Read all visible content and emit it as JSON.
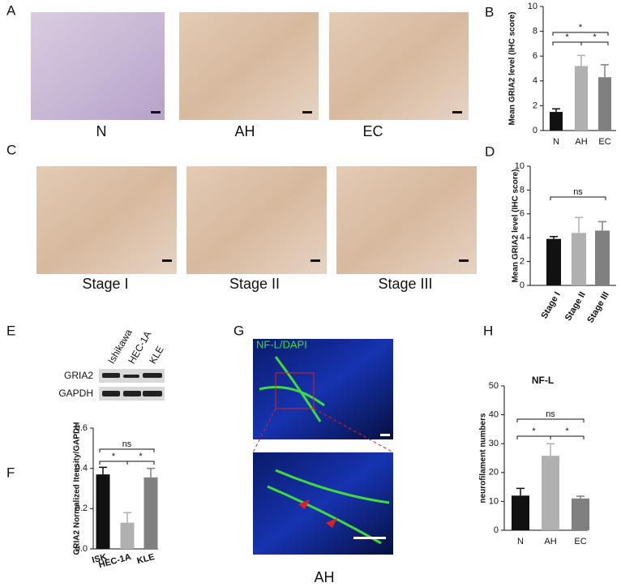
{
  "panel_labels": [
    "A",
    "B",
    "C",
    "D",
    "E",
    "F",
    "G",
    "H"
  ],
  "image_captions": [
    "N",
    "AH",
    "EC",
    "Stage I",
    "Stage II",
    "Stage III",
    "AH"
  ],
  "blot": {
    "lanes": [
      "Ishikawa",
      "HEC-1A",
      "KLE"
    ],
    "rows": [
      "GRIA2",
      "GAPDH"
    ]
  },
  "fluorescence_label": "NF-L/DAPI",
  "chart_data": [
    {
      "type": "bar",
      "ylabel": "Mean GRIA2 level (IHC score)",
      "categories": [
        "N",
        "AH",
        "EC"
      ],
      "values": [
        1.5,
        5.2,
        4.3
      ],
      "errors": [
        0.25,
        0.85,
        1.0
      ],
      "colors": [
        "#111111",
        "#b0b0b0",
        "#808080"
      ],
      "ylim": [
        0,
        10
      ],
      "yticks": [
        0,
        2,
        4,
        6,
        8,
        10
      ],
      "annotations": [
        "*",
        "*",
        "*"
      ]
    },
    {
      "type": "bar",
      "ylabel": "Mean GRIA2 level (IHC score)",
      "categories": [
        "Stage I",
        "Stage II",
        "Stage III"
      ],
      "values": [
        3.9,
        4.4,
        4.6
      ],
      "errors": [
        0.2,
        1.3,
        0.75
      ],
      "colors": [
        "#111111",
        "#b0b0b0",
        "#808080"
      ],
      "ylim": [
        0,
        10
      ],
      "yticks": [
        0,
        2,
        4,
        6,
        8,
        10
      ],
      "annotations": [
        "ns"
      ]
    },
    {
      "type": "bar",
      "ylabel": "GRIA2 Normalized Itensity/GAPDH",
      "categories": [
        "ISK",
        "HEC-1A",
        "KLE"
      ],
      "values": [
        0.37,
        0.13,
        0.355
      ],
      "errors": [
        0.035,
        0.05,
        0.045
      ],
      "colors": [
        "#111111",
        "#b0b0b0",
        "#808080"
      ],
      "ylim": [
        0,
        0.6
      ],
      "yticks": [
        {
          "value": 0,
          "label": "0.0"
        },
        0.2,
        0.4,
        0.6
      ],
      "annotations": [
        "ns",
        "*",
        "*"
      ]
    },
    {
      "type": "bar",
      "title": "NF-L",
      "ylabel": "neurofilament numbers",
      "categories": [
        "N",
        "AH",
        "EC"
      ],
      "values": [
        12,
        25.8,
        11
      ],
      "errors": [
        2.5,
        4.2,
        0.8
      ],
      "colors": [
        "#111111",
        "#b0b0b0",
        "#808080"
      ],
      "ylim": [
        0,
        50
      ],
      "yticks": [
        0,
        10,
        20,
        30,
        40,
        50
      ],
      "annotations": [
        "ns",
        "*",
        "*"
      ]
    }
  ]
}
